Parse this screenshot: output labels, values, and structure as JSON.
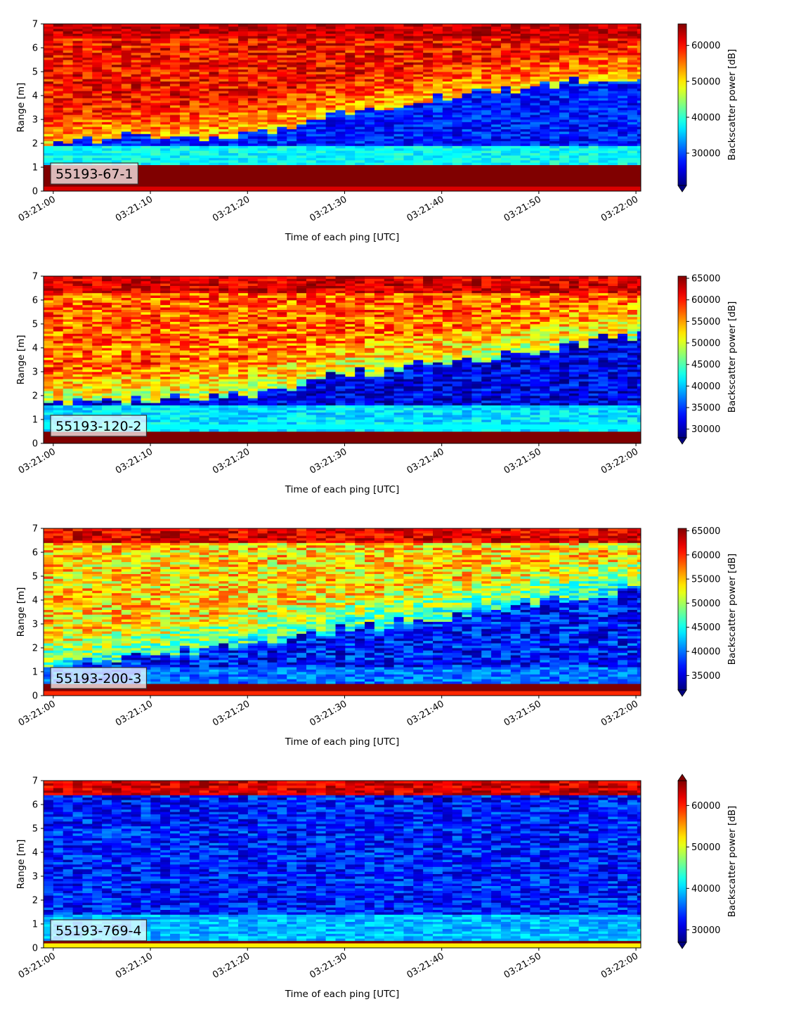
{
  "chart_data": [
    {
      "type": "heatmap",
      "label": "55193-67-1",
      "xlabel": "Time of each ping [UTC]",
      "ylabel": "Range [m]",
      "colorbar_label": "Backscatter power [dB]",
      "colormap": "jet",
      "x_ticks": [
        "03:21:00",
        "03:21:10",
        "03:21:20",
        "03:21:30",
        "03:21:40",
        "03:21:50",
        "03:22:00"
      ],
      "xlim": [
        "03:20:59",
        "03:22:00.5"
      ],
      "y_ticks": [
        "0",
        "1",
        "2",
        "3",
        "4",
        "5",
        "6",
        "7"
      ],
      "ylim": [
        0,
        7
      ],
      "clim": [
        21000,
        66000
      ],
      "colorbar_ticks": [
        "30000",
        "40000",
        "50000",
        "60000"
      ],
      "colorbar_extend": "min",
      "profile_model": {
        "near_field": {
          "range_m": [
            0.2,
            1.15
          ],
          "value": 66000
        },
        "pulse_bottom": {
          "range_m": [
            0,
            0.2
          ],
          "value": 62000
        },
        "bright_top_above_m": 6.4,
        "surface_background": 60000,
        "dark_band_bottom_m": 1.9,
        "dark_band_value": 38000,
        "dark_gap_top_m": {
          "03:21:00": 2.1,
          "03:21:20": 2.4,
          "03:21:30": 3.3,
          "03:21:45": 4.2,
          "03:22:00": 4.8
        },
        "dark_gap_value": 27000
      }
    },
    {
      "type": "heatmap",
      "label": "55193-120-2",
      "xlabel": "Time of each ping [UTC]",
      "ylabel": "Range [m]",
      "colorbar_label": "Backscatter power [dB]",
      "colormap": "jet",
      "x_ticks": [
        "03:21:00",
        "03:21:10",
        "03:21:20",
        "03:21:30",
        "03:21:40",
        "03:21:50",
        "03:22:00"
      ],
      "xlim": [
        "03:20:59",
        "03:22:00.5"
      ],
      "y_ticks": [
        "0",
        "1",
        "2",
        "3",
        "4",
        "5",
        "6",
        "7"
      ],
      "ylim": [
        0,
        7
      ],
      "clim": [
        28000,
        65500
      ],
      "colorbar_ticks": [
        "30000",
        "35000",
        "40000",
        "45000",
        "50000",
        "55000",
        "60000",
        "65000"
      ],
      "colorbar_extend": "min",
      "profile_model": {
        "near_field": {
          "range_m": [
            0.6,
            0.8
          ],
          "value": 42000
        },
        "pulse_bottom": {
          "range_m": [
            0,
            0.55
          ],
          "value": 65500
        },
        "bright_top_above_m": 6.3,
        "surface_background": 57000,
        "dark_band_bottom_m": 1.6,
        "dark_band_value": 41000,
        "dark_gap_top_m": {
          "03:21:00": 1.6,
          "03:21:20": 2.0,
          "03:21:30": 2.9,
          "03:21:45": 3.6,
          "03:22:00": 4.6
        },
        "dark_gap_value": 31000
      }
    },
    {
      "type": "heatmap",
      "label": "55193-200-3",
      "xlabel": "Time of each ping [UTC]",
      "ylabel": "Range [m]",
      "colorbar_label": "Backscatter power [dB]",
      "colormap": "jet",
      "x_ticks": [
        "03:21:00",
        "03:21:10",
        "03:21:20",
        "03:21:30",
        "03:21:40",
        "03:21:50",
        "03:22:00"
      ],
      "xlim": [
        "03:20:59",
        "03:22:00.5"
      ],
      "y_ticks": [
        "0",
        "1",
        "2",
        "3",
        "4",
        "5",
        "6",
        "7"
      ],
      "ylim": [
        0,
        7
      ],
      "clim": [
        32000,
        65500
      ],
      "colorbar_ticks": [
        "35000",
        "40000",
        "45000",
        "50000",
        "55000",
        "60000",
        "65000"
      ],
      "colorbar_extend": "min",
      "profile_model": {
        "near_field": {
          "range_m": [
            0.2,
            0.45
          ],
          "value": 65500
        },
        "pulse_bottom": {
          "range_m": [
            0,
            0.2
          ],
          "value": 60000
        },
        "bright_top_above_m": 6.4,
        "surface_background": 54000,
        "dark_band_bottom_m": 1.2,
        "dark_band_value": 40000,
        "dark_gap_top_m": {
          "03:21:00": 1.2,
          "03:21:20": 2.2,
          "03:21:30": 2.8,
          "03:21:45": 3.6,
          "03:22:00": 4.5
        },
        "dark_gap_value": 36000
      }
    },
    {
      "type": "heatmap",
      "label": "55193-769-4",
      "xlabel": "Time of each ping [UTC]",
      "ylabel": "Range [m]",
      "colorbar_label": "Backscatter power [dB]",
      "colormap": "jet",
      "x_ticks": [
        "03:21:00",
        "03:21:10",
        "03:21:20",
        "03:21:30",
        "03:21:40",
        "03:21:50",
        "03:22:00"
      ],
      "xlim": [
        "03:20:59",
        "03:22:00.5"
      ],
      "y_ticks": [
        "0",
        "1",
        "2",
        "3",
        "4",
        "5",
        "6",
        "7"
      ],
      "ylim": [
        0,
        7
      ],
      "clim": [
        27000,
        66000
      ],
      "colorbar_ticks": [
        "30000",
        "40000",
        "50000",
        "60000"
      ],
      "colorbar_extend": "both",
      "profile_model": {
        "near_field": {
          "range_m": [
            0.2,
            0.35
          ],
          "value": 66000
        },
        "pulse_bottom": {
          "range_m": [
            0,
            0.2
          ],
          "value": 52000
        },
        "bright_top_above_m": 6.4,
        "surface_background": 40000,
        "dark_band_bottom_m": 1.4,
        "dark_band_value": 39000,
        "dark_gap_top_m": {
          "03:21:00": 6.2,
          "03:21:20": 6.2,
          "03:21:30": 6.2,
          "03:21:45": 6.2,
          "03:22:00": 6.2
        },
        "dark_gap_value": 32000
      }
    }
  ]
}
